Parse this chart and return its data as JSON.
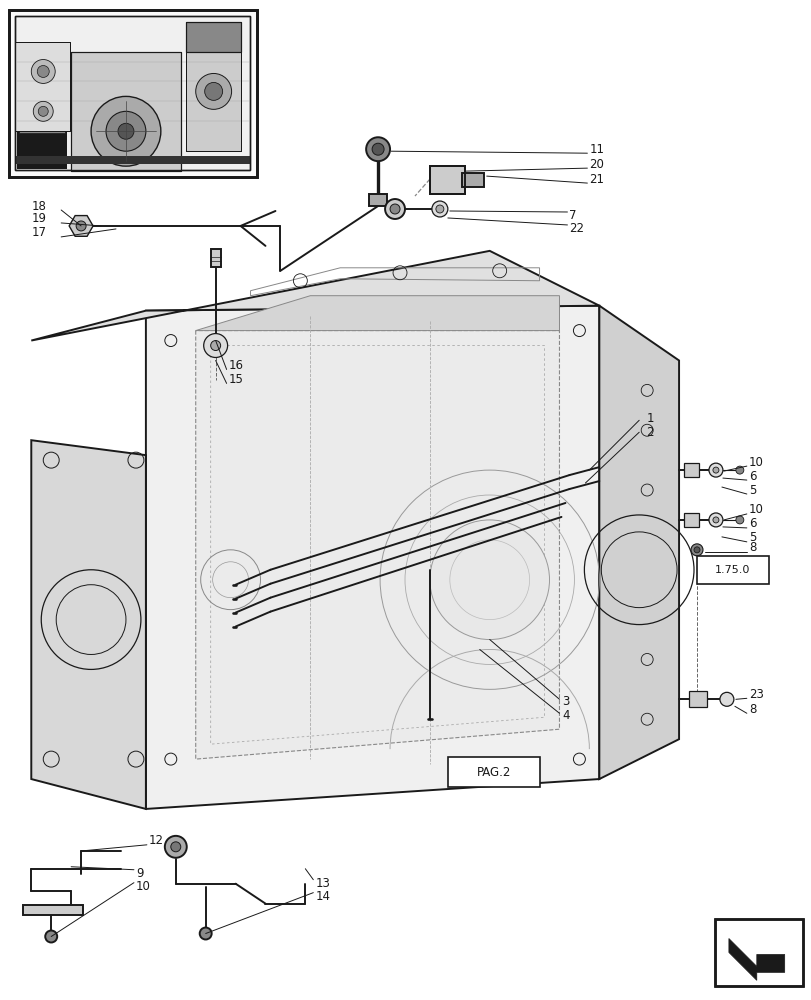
{
  "bg_color": "#ffffff",
  "line_color": "#1a1a1a",
  "label_fontsize": 8.5,
  "fig_width": 8.12,
  "fig_height": 10.0,
  "dpi": 100
}
